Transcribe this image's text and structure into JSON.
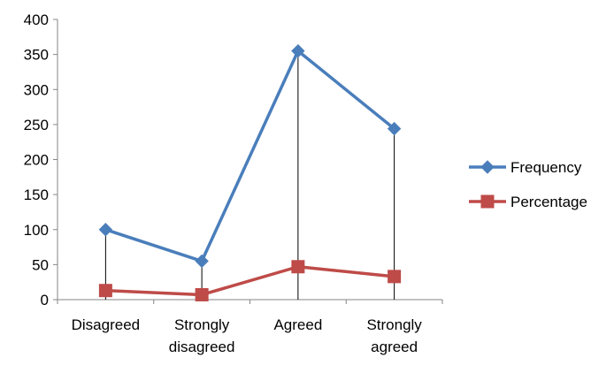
{
  "chart_data": {
    "type": "line",
    "categories": [
      "Disagreed",
      "Strongly disagreed",
      "Agreed",
      "Strongly agreed"
    ],
    "category_lines": [
      [
        "Disagreed"
      ],
      [
        "Strongly",
        "disagreed"
      ],
      [
        "Agreed"
      ],
      [
        "Strongly",
        "agreed"
      ]
    ],
    "series": [
      {
        "name": "Frequency",
        "values": [
          100,
          55,
          355,
          244
        ],
        "color": "#4a7ebb",
        "marker": "diamond"
      },
      {
        "name": "Percentage",
        "values": [
          13,
          7,
          47,
          33
        ],
        "color": "#be4b48",
        "marker": "square"
      }
    ],
    "ylim": [
      0,
      400
    ],
    "yticks": [
      "0",
      "50",
      "100",
      "150",
      "200",
      "250",
      "300",
      "350",
      "400"
    ],
    "title": "",
    "xlabel": "",
    "ylabel": "",
    "grid": false,
    "drop_lines": true,
    "legend_position": "right"
  }
}
